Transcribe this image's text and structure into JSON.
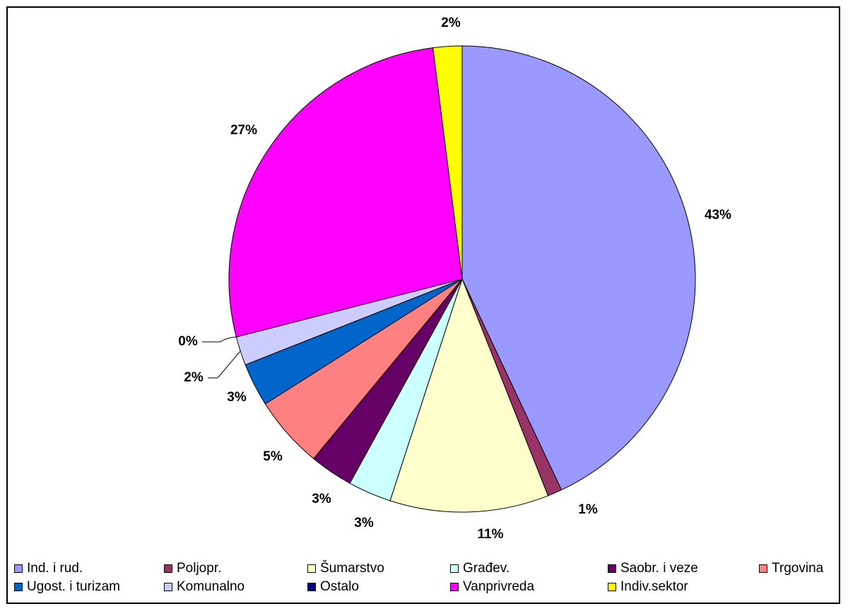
{
  "chart_data": {
    "type": "pie",
    "slices": [
      {
        "name": "Ind. i rud.",
        "value": 43,
        "label": "43%",
        "color": "#9999ff"
      },
      {
        "name": "Poljopr.",
        "value": 1,
        "label": "1%",
        "color": "#993366"
      },
      {
        "name": "Šumarstvo",
        "value": 11,
        "label": "11%",
        "color": "#ffffcc"
      },
      {
        "name": "Građev.",
        "value": 3,
        "label": "3%",
        "color": "#ccffff"
      },
      {
        "name": "Saobr. i veze",
        "value": 3,
        "label": "3%",
        "color": "#660066"
      },
      {
        "name": "Trgovina",
        "value": 5,
        "label": "5%",
        "color": "#ff8080"
      },
      {
        "name": "Ugost. i turizam",
        "value": 3,
        "label": "3%",
        "color": "#0066cc"
      },
      {
        "name": "Komunalno",
        "value": 2,
        "label": "2%",
        "color": "#ccccff"
      },
      {
        "name": "Ostalo",
        "value": 0,
        "label": "0%",
        "color": "#000080"
      },
      {
        "name": "Vanprivreda",
        "value": 27,
        "label": "27%",
        "color": "#ff00ff"
      },
      {
        "name": "Indiv.sektor",
        "value": 2,
        "label": "2%",
        "color": "#ffff00"
      }
    ],
    "legend": {
      "position": "bottom",
      "rows": [
        [
          "Ind. i rud.",
          "Poljopr.",
          "Šumarstvo",
          "Građev.",
          "Saobr. i veze",
          "Trgovina"
        ],
        [
          "Ugost. i turizam",
          "Komunalno",
          "Ostalo",
          "Vanprivreda",
          "Indiv.sektor"
        ]
      ]
    },
    "title": ""
  }
}
